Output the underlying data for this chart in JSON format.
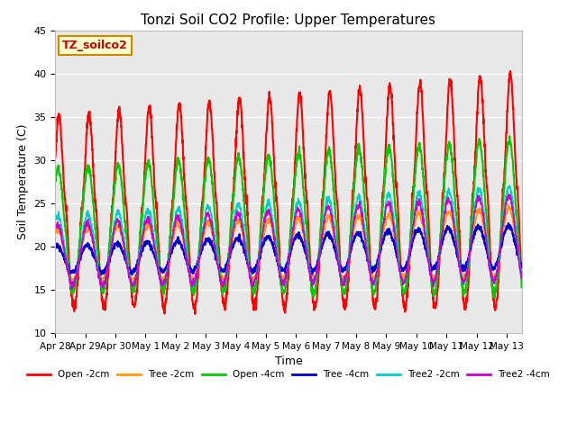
{
  "title": "Tonzi Soil CO2 Profile: Upper Temperatures",
  "xlabel": "Time",
  "ylabel": "Soil Temperature (C)",
  "ylim": [
    10,
    45
  ],
  "xlim_days": 15.5,
  "background_color": "#ffffff",
  "plot_bg_color": "#e8e8e8",
  "grid_color": "#ffffff",
  "watermark_text": "TZ_soilco2",
  "watermark_color": "#cc0000",
  "watermark_bg": "#ffffcc",
  "watermark_border": "#cc8800",
  "series_names": [
    "Open -2cm",
    "Tree -2cm",
    "Open -4cm",
    "Tree -4cm",
    "Tree2 -2cm",
    "Tree2 -4cm"
  ],
  "series_colors": [
    "#ff0000",
    "#ff9900",
    "#00cc00",
    "#0000cc",
    "#00cccc",
    "#cc00cc"
  ],
  "series_lw": [
    1.5,
    1.2,
    1.5,
    1.5,
    1.2,
    1.2
  ],
  "n_points": 2000,
  "total_days": 15.5,
  "xtick_labels": [
    "Apr 28",
    "Apr 29",
    "Apr 30",
    "May 1",
    "May 2",
    "May 3",
    "May 4",
    "May 5",
    "May 6",
    "May 7",
    "May 8",
    "May 9",
    "May 10",
    "May 11",
    "May 12",
    "May 13"
  ],
  "xtick_positions": [
    0,
    1,
    2,
    3,
    4,
    5,
    6,
    7,
    8,
    9,
    10,
    11,
    12,
    13,
    14,
    15
  ],
  "ytick_labels": [
    "10",
    "15",
    "20",
    "25",
    "30",
    "35",
    "40",
    "45"
  ],
  "ytick_positions": [
    10,
    15,
    20,
    25,
    30,
    35,
    40,
    45
  ]
}
